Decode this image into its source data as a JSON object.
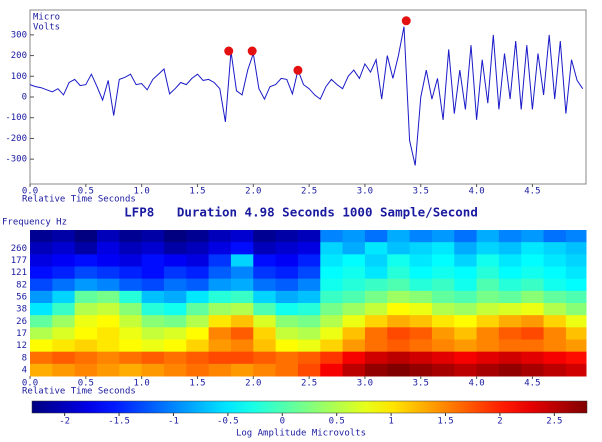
{
  "chart_data": [
    {
      "type": "line",
      "ylabel_lines": [
        "Micro",
        "Volts"
      ],
      "xlabel": "Relative Time Seconds",
      "color": "#1a1ac8",
      "x": [
        0,
        0.05,
        0.1,
        0.15,
        0.2,
        0.25,
        0.3,
        0.35,
        0.4,
        0.45,
        0.5,
        0.55,
        0.6,
        0.65,
        0.7,
        0.75,
        0.8,
        0.85,
        0.9,
        0.95,
        1,
        1.05,
        1.1,
        1.15,
        1.2,
        1.25,
        1.3,
        1.35,
        1.4,
        1.45,
        1.5,
        1.55,
        1.6,
        1.65,
        1.7,
        1.75,
        1.8,
        1.85,
        1.9,
        1.95,
        2,
        2.05,
        2.1,
        2.15,
        2.2,
        2.25,
        2.3,
        2.35,
        2.4,
        2.45,
        2.5,
        2.55,
        2.6,
        2.65,
        2.7,
        2.75,
        2.8,
        2.85,
        2.9,
        2.95,
        3,
        3.05,
        3.1,
        3.15,
        3.2,
        3.25,
        3.3,
        3.35,
        3.4,
        3.45,
        3.5,
        3.55,
        3.6,
        3.65,
        3.7,
        3.75,
        3.8,
        3.85,
        3.9,
        3.95,
        4,
        4.05,
        4.1,
        4.15,
        4.2,
        4.25,
        4.3,
        4.35,
        4.4,
        4.45,
        4.5,
        4.55,
        4.6,
        4.65,
        4.7,
        4.75,
        4.8,
        4.85,
        4.9,
        4.95
      ],
      "values": [
        60,
        50,
        45,
        35,
        25,
        40,
        10,
        70,
        85,
        55,
        60,
        110,
        50,
        -15,
        80,
        -90,
        85,
        95,
        110,
        60,
        65,
        35,
        85,
        110,
        135,
        15,
        40,
        70,
        60,
        90,
        110,
        80,
        85,
        70,
        40,
        -120,
        220,
        30,
        10,
        130,
        210,
        40,
        -10,
        50,
        60,
        90,
        85,
        15,
        130,
        60,
        40,
        10,
        -10,
        50,
        85,
        60,
        40,
        100,
        130,
        90,
        160,
        120,
        180,
        -10,
        200,
        90,
        200,
        340,
        -210,
        -330,
        0,
        130,
        -10,
        90,
        -110,
        230,
        -80,
        130,
        -60,
        250,
        -110,
        180,
        -30,
        300,
        -60,
        210,
        -10,
        270,
        -60,
        250,
        -60,
        210,
        10,
        300,
        -10,
        270,
        -80,
        180,
        80,
        40
      ],
      "markers": {
        "x": [
          1.78,
          1.99,
          2.4,
          3.37
        ],
        "y": [
          222,
          222,
          129,
          368
        ],
        "color": "#e41010"
      },
      "xlim": [
        0,
        4.98
      ],
      "xticks": [
        {
          "value": 0,
          "label": "0.0"
        },
        0.5,
        {
          "value": 1,
          "label": "1.0"
        },
        1.5,
        {
          "value": 2,
          "label": "2.0"
        },
        2.5,
        {
          "value": 3,
          "label": "3.0"
        },
        3.5,
        {
          "value": 4,
          "label": "4.0"
        },
        4.5
      ],
      "ylim": [
        -420,
        420
      ],
      "yticks": [
        -300,
        -200,
        -100,
        0,
        100,
        200,
        300
      ]
    },
    {
      "type": "heatmap",
      "title": "LFP8   Duration 4.98 Seconds 1000 Sample/Second",
      "ylabel": "Frequency Hz",
      "xlabel": "Relative Time Seconds",
      "colorbar_label": "Log Amplitude Microvolts",
      "bins": [
        0,
        0.2,
        0.4,
        0.6,
        0.8,
        1,
        1.2,
        1.4,
        1.6,
        1.8,
        2,
        2.2,
        2.4,
        2.6,
        2.8,
        3,
        3.2,
        3.4,
        3.6,
        3.8,
        4,
        4.2,
        4.4,
        4.6,
        4.8,
        4.98
      ],
      "y_categories": [
        null,
        260,
        177,
        121,
        82,
        56,
        38,
        26,
        17,
        12,
        8,
        4
      ],
      "matrix": [
        [
          -2.2,
          -2.1,
          -2.3,
          -2.0,
          -2.2,
          -2.1,
          -2.3,
          -2.2,
          -2.0,
          -1.9,
          -2.2,
          -2.1,
          -2.0,
          -1.0,
          -0.9,
          -1.1,
          -0.8,
          -1.0,
          -0.9,
          -1.1,
          -0.8,
          -1.0,
          -0.9,
          -1.1,
          -1.0
        ],
        [
          -2.0,
          -1.9,
          -2.1,
          -1.8,
          -2.0,
          -1.9,
          -2.1,
          -2.0,
          -1.8,
          -1.6,
          -2.0,
          -1.9,
          -1.8,
          -0.6,
          -0.8,
          -0.5,
          -0.7,
          -0.6,
          -0.5,
          -0.8,
          -0.6,
          -0.7,
          -0.5,
          -0.6,
          -0.7
        ],
        [
          -1.8,
          -1.7,
          -1.6,
          -1.7,
          -1.8,
          -1.6,
          -1.7,
          -1.8,
          -1.4,
          -0.6,
          -1.6,
          -1.7,
          -1.5,
          -0.5,
          -0.4,
          -0.6,
          -0.3,
          -0.5,
          -0.4,
          -0.6,
          -0.3,
          -0.5,
          -0.4,
          -0.5,
          -0.6
        ],
        [
          -1.6,
          -1.5,
          -1.3,
          -1.4,
          -1.5,
          -1.6,
          -1.4,
          -1.5,
          -1.2,
          -1.0,
          -1.4,
          -1.5,
          -1.3,
          -0.4,
          -0.3,
          -0.5,
          -0.2,
          -0.4,
          -0.3,
          -0.4,
          -0.2,
          -0.4,
          -0.3,
          -0.4,
          -0.5
        ],
        [
          -1.3,
          -1.1,
          -0.9,
          -1.0,
          -1.2,
          -1.3,
          -1.1,
          -1.2,
          -0.9,
          -0.8,
          -1.1,
          -1.2,
          -1.0,
          -0.3,
          -0.2,
          -0.1,
          0.0,
          -0.2,
          -0.1,
          -0.3,
          0.0,
          -0.2,
          -0.1,
          -0.3,
          -0.4
        ],
        [
          -0.9,
          -0.6,
          0.1,
          0.2,
          -0.2,
          -0.7,
          -0.8,
          -0.5,
          -0.2,
          -0.1,
          -0.6,
          -0.8,
          -0.7,
          -0.1,
          0.0,
          0.2,
          0.4,
          0.3,
          0.1,
          0.0,
          0.2,
          0.1,
          0.3,
          0.1,
          0.0
        ],
        [
          -0.5,
          -0.1,
          0.5,
          0.6,
          0.3,
          -0.2,
          -0.3,
          0.1,
          0.4,
          0.5,
          0.0,
          -0.3,
          -0.2,
          0.2,
          0.4,
          0.6,
          0.9,
          0.8,
          0.5,
          0.4,
          0.6,
          0.7,
          0.8,
          0.5,
          0.3
        ],
        [
          0.1,
          0.4,
          0.8,
          0.9,
          0.6,
          0.3,
          0.2,
          0.5,
          1.0,
          1.2,
          0.7,
          0.3,
          0.2,
          0.5,
          0.8,
          1.1,
          1.3,
          1.2,
          1.0,
          0.9,
          1.1,
          1.3,
          1.4,
          1.1,
          0.8
        ],
        [
          0.5,
          0.7,
          0.9,
          1.0,
          0.8,
          0.6,
          0.7,
          0.9,
          1.5,
          1.7,
          1.1,
          0.6,
          0.5,
          0.8,
          1.2,
          1.6,
          1.8,
          1.7,
          1.4,
          1.2,
          1.5,
          1.7,
          1.8,
          1.5,
          1.2
        ],
        [
          0.9,
          1.0,
          1.1,
          1.0,
          0.9,
          0.8,
          0.9,
          1.1,
          1.4,
          1.5,
          1.2,
          0.9,
          0.8,
          1.1,
          1.4,
          1.6,
          1.7,
          1.6,
          1.5,
          1.4,
          1.5,
          1.6,
          1.6,
          1.5,
          1.4
        ],
        [
          1.6,
          1.7,
          1.6,
          1.5,
          1.6,
          1.7,
          1.6,
          1.7,
          1.8,
          1.8,
          1.7,
          1.6,
          1.7,
          1.9,
          2.2,
          2.4,
          2.5,
          2.4,
          2.3,
          2.2,
          2.3,
          2.4,
          2.3,
          2.2,
          2.1
        ],
        [
          1.3,
          1.4,
          1.5,
          1.4,
          1.3,
          1.4,
          1.5,
          1.6,
          1.5,
          1.4,
          1.5,
          1.6,
          1.8,
          2.2,
          2.5,
          2.7,
          2.8,
          2.7,
          2.6,
          2.5,
          2.6,
          2.7,
          2.6,
          2.5,
          2.4
        ]
      ],
      "xlim": [
        0,
        4.98
      ],
      "xticks": [
        {
          "value": 0,
          "label": "0.0"
        },
        0.5,
        {
          "value": 1,
          "label": "1.0"
        },
        1.5,
        {
          "value": 2,
          "label": "2.0"
        },
        2.5,
        {
          "value": 3,
          "label": "3.0"
        },
        3.5,
        {
          "value": 4,
          "label": "4.0"
        },
        4.5
      ],
      "clim": [
        -2.3,
        2.8
      ],
      "cticks": [
        -2,
        -1.5,
        -1,
        -0.5,
        0,
        0.5,
        1,
        1.5,
        2,
        2.5
      ],
      "colormap": "jet"
    }
  ]
}
